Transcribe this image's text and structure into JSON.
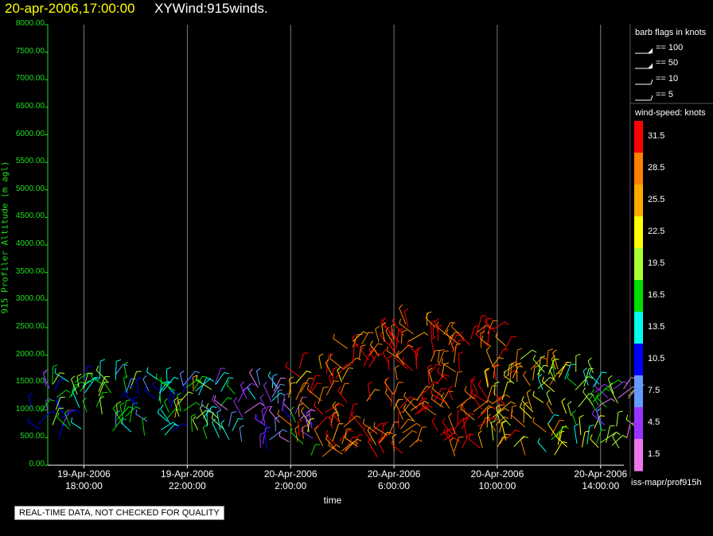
{
  "header": {
    "date": "20-apr-2006,17:00:00",
    "title": "XYWind:915winds."
  },
  "notice": "REAL-TIME DATA, NOT CHECKED FOR QUALITY",
  "footer": "iss-mapr/prof915h",
  "legend": {
    "flags_title": "barb flags in knots",
    "flags": [
      "== 100",
      "== 50",
      "== 10",
      "== 5"
    ],
    "colorbar_title": "wind-speed: knots",
    "colorbar": [
      {
        "label": "31.5",
        "color": "#ff0000"
      },
      {
        "label": "28.5",
        "color": "#ff8000"
      },
      {
        "label": "25.5",
        "color": "#ffaa00"
      },
      {
        "label": "22.5",
        "color": "#ffff00"
      },
      {
        "label": "19.5",
        "color": "#aaff33"
      },
      {
        "label": "16.5",
        "color": "#00e000"
      },
      {
        "label": "13.5",
        "color": "#00ffee"
      },
      {
        "label": "10.5",
        "color": "#0000ff"
      },
      {
        "label": "7.5",
        "color": "#6699ff"
      },
      {
        "label": "4.5",
        "color": "#9933ff"
      },
      {
        "label": "1.5",
        "color": "#ee77ee"
      }
    ]
  },
  "chart_data": {
    "type": "scatter",
    "title": "XYWind:915winds.",
    "xlabel": "time",
    "ylabel": "915 Profiler Altitude (m agl)",
    "ylim": [
      0,
      8000
    ],
    "xlim_hours": [
      16.6,
      38.9
    ],
    "yticks": [
      "8000.00",
      "7500.00",
      "7000.00",
      "6500.00",
      "6000.00",
      "5500.00",
      "5000.00",
      "4500.00",
      "4000.00",
      "3500.00",
      "3000.00",
      "2500.00",
      "2000.00",
      "1500.00",
      "1000.00",
      "500.00",
      "0.00"
    ],
    "xticks": [
      {
        "hour": 18,
        "date": "19-Apr-2006",
        "time": "18:00:00"
      },
      {
        "hour": 22,
        "date": "19-Apr-2006",
        "time": "22:00:00"
      },
      {
        "hour": 26,
        "date": "20-Apr-2006",
        "time": "2:00:00"
      },
      {
        "hour": 30,
        "date": "20-Apr-2006",
        "time": "6:00:00"
      },
      {
        "hour": 34,
        "date": "20-Apr-2006",
        "time": "10:00:00"
      },
      {
        "hour": 38,
        "date": "20-Apr-2006",
        "time": "14:00:00"
      }
    ],
    "grid": "vertical",
    "series": [
      {
        "values": [
          {
            "t": 16.8,
            "top": 1500,
            "bottom": 450,
            "mix": [
              [
                "#00e000",
                0.3
              ],
              [
                "#aaff33",
                0.3
              ],
              [
                "#0000ff",
                0.2
              ],
              [
                "#9933ff",
                0.2
              ]
            ]
          },
          {
            "t": 18.5,
            "top": 1600,
            "bottom": 420,
            "mix": [
              [
                "#00e000",
                0.4
              ],
              [
                "#aaff33",
                0.3
              ],
              [
                "#00ffee",
                0.2
              ],
              [
                "#0000ff",
                0.1
              ]
            ]
          },
          {
            "t": 20.5,
            "top": 1650,
            "bottom": 420,
            "mix": [
              [
                "#00ffee",
                0.4
              ],
              [
                "#0000ff",
                0.3
              ],
              [
                "#6699ff",
                0.2
              ],
              [
                "#00e000",
                0.1
              ]
            ]
          },
          {
            "t": 22.5,
            "top": 1500,
            "bottom": 420,
            "mix": [
              [
                "#00e000",
                0.4
              ],
              [
                "#00ffee",
                0.3
              ],
              [
                "#aaff33",
                0.2
              ],
              [
                "#ffaa00",
                0.1
              ]
            ]
          },
          {
            "t": 24.3,
            "top": 1500,
            "bottom": 250,
            "mix": [
              [
                "#9933ff",
                0.45
              ],
              [
                "#6699ff",
                0.25
              ],
              [
                "#00ffee",
                0.15
              ],
              [
                "#ee77ee",
                0.15
              ]
            ]
          },
          {
            "t": 26.0,
            "top": 1100,
            "bottom": 150,
            "mix": [
              [
                "#9933ff",
                0.3
              ],
              [
                "#00e000",
                0.2
              ],
              [
                "#0000ff",
                0.2
              ],
              [
                "#ee77ee",
                0.3
              ]
            ]
          },
          {
            "t": 27.0,
            "top": 1800,
            "bottom": 120,
            "mix": [
              [
                "#ff0000",
                0.35
              ],
              [
                "#ff8000",
                0.3
              ],
              [
                "#ffaa00",
                0.2
              ],
              [
                "#ffff00",
                0.15
              ]
            ]
          },
          {
            "t": 29.0,
            "top": 2300,
            "bottom": 120,
            "mix": [
              [
                "#ff0000",
                0.55
              ],
              [
                "#ff8000",
                0.3
              ],
              [
                "#ffaa00",
                0.15
              ]
            ]
          },
          {
            "t": 31.0,
            "top": 2600,
            "bottom": 120,
            "mix": [
              [
                "#ff0000",
                0.6
              ],
              [
                "#ff8000",
                0.3
              ],
              [
                "#ffaa00",
                0.1
              ]
            ]
          },
          {
            "t": 33.0,
            "top": 2500,
            "bottom": 120,
            "mix": [
              [
                "#ff0000",
                0.5
              ],
              [
                "#ff8000",
                0.35
              ],
              [
                "#ffaa00",
                0.15
              ]
            ]
          },
          {
            "t": 35.0,
            "top": 2000,
            "bottom": 120,
            "mix": [
              [
                "#ff8000",
                0.35
              ],
              [
                "#ffaa00",
                0.25
              ],
              [
                "#ffff00",
                0.2
              ],
              [
                "#aaff33",
                0.2
              ]
            ]
          },
          {
            "t": 37.0,
            "top": 1700,
            "bottom": 200,
            "mix": [
              [
                "#aaff33",
                0.35
              ],
              [
                "#00e000",
                0.3
              ],
              [
                "#00ffee",
                0.2
              ],
              [
                "#ffff00",
                0.15
              ]
            ]
          },
          {
            "t": 38.5,
            "top": 1400,
            "bottom": 300,
            "mix": [
              [
                "#9933ff",
                0.35
              ],
              [
                "#ee77ee",
                0.25
              ],
              [
                "#00e000",
                0.2
              ],
              [
                "#aaff33",
                0.2
              ]
            ]
          }
        ]
      }
    ]
  }
}
